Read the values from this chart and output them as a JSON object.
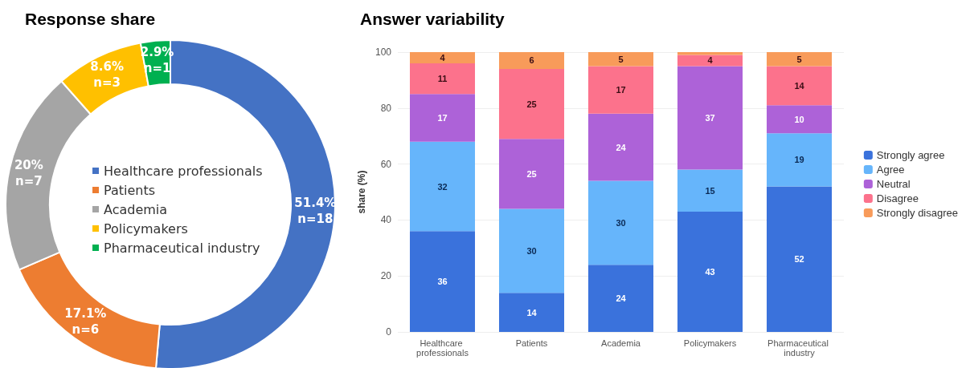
{
  "chart_data": [
    {
      "type": "donut",
      "title": "Response share",
      "categories": [
        "Healthcare professionals",
        "Patients",
        "Academia",
        "Policymakers",
        "Pharmaceutical industry"
      ],
      "values": [
        51.4,
        17.1,
        20,
        8.6,
        2.9
      ],
      "colors": [
        "#4472c4",
        "#ed7d31",
        "#a5a5a5",
        "#ffc000",
        "#00b050"
      ],
      "value_labels": [
        "51.4%\nn=18",
        "17.1%\nn=6",
        "20%\nn=7",
        "8.6%\nn=3",
        "2.9%\nn=1"
      ],
      "legend": "center"
    },
    {
      "type": "bar",
      "title": "Answer variability",
      "ylabel": "share (%)",
      "stacked": true,
      "categories": [
        "Healthcare professionals",
        "Patients",
        "Academia",
        "Policymakers",
        "Pharmaceutical industry"
      ],
      "series": [
        {
          "name": "Strongly agree",
          "color": "#3a72dc",
          "values": [
            36,
            14,
            24,
            43,
            52
          ],
          "value_labels": [
            "36",
            "14",
            "24",
            "43",
            "52"
          ]
        },
        {
          "name": "Agree",
          "color": "#66b5fb",
          "values": [
            32,
            30,
            30,
            15,
            19
          ],
          "value_labels": [
            "32",
            "30",
            "30",
            "15",
            "19"
          ]
        },
        {
          "name": "Neutral",
          "color": "#ad62d8",
          "values": [
            17,
            25,
            24,
            37,
            10
          ],
          "value_labels": [
            "17",
            "25",
            "24",
            "37",
            "10"
          ]
        },
        {
          "name": "Disagree",
          "color": "#fc728c",
          "values": [
            11,
            25,
            17,
            4,
            14
          ],
          "value_labels": [
            "11",
            "25",
            "17",
            "4",
            "14"
          ]
        },
        {
          "name": "Strongly disagree",
          "color": "#f89b5a",
          "values": [
            4,
            6,
            5,
            1,
            5
          ],
          "value_labels": [
            "4",
            "6",
            "5",
            null,
            "5"
          ]
        }
      ],
      "ylim": [
        0,
        100
      ],
      "yticks": [
        0,
        20,
        40,
        60,
        80,
        100
      ],
      "grid": "y",
      "legend": "right"
    }
  ]
}
